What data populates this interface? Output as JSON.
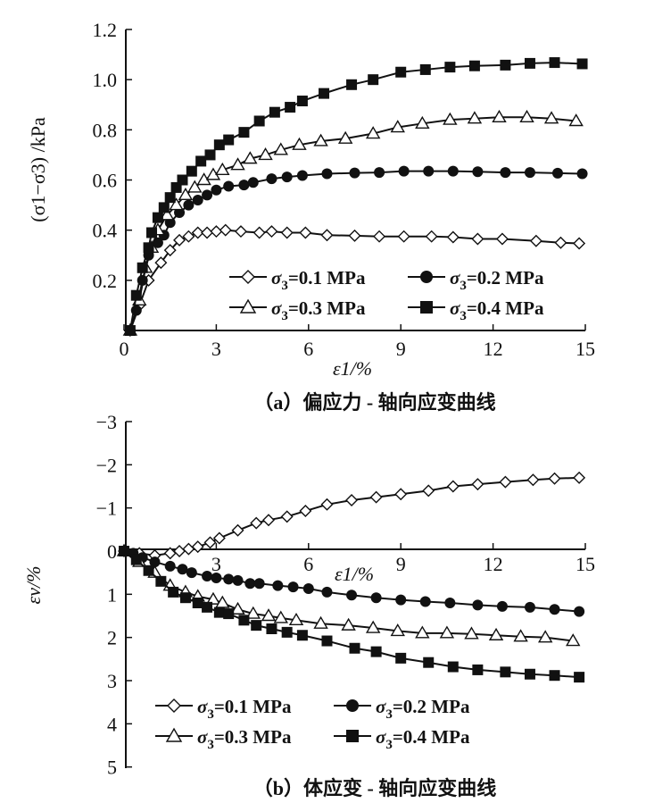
{
  "chart_data": [
    {
      "type": "line",
      "title": "（a）偏应力 - 轴向应变曲线",
      "xlabel": "ε1/%",
      "ylabel": "(σ1−σ3) /kPa",
      "xlim": [
        0,
        15
      ],
      "ylim": [
        0,
        1.2
      ],
      "xticks": [
        "0",
        "3",
        "6",
        "9",
        "12",
        "15"
      ],
      "yticks": [
        "0.2",
        "0.4",
        "0.6",
        "0.8",
        "1.0",
        "1.2"
      ],
      "legend_position": "bottom-right",
      "series": [
        {
          "name": "σ3=0.1 MPa",
          "marker": "diamond-open",
          "points": [
            [
              0.2,
              0
            ],
            [
              0.5,
              0.1
            ],
            [
              0.8,
              0.2
            ],
            [
              1.2,
              0.27
            ],
            [
              1.5,
              0.32
            ],
            [
              1.8,
              0.36
            ],
            [
              2.1,
              0.375
            ],
            [
              2.4,
              0.39
            ],
            [
              2.7,
              0.39
            ],
            [
              3.0,
              0.395
            ],
            [
              3.3,
              0.4
            ],
            [
              3.8,
              0.395
            ],
            [
              4.4,
              0.39
            ],
            [
              4.8,
              0.395
            ],
            [
              5.3,
              0.39
            ],
            [
              5.9,
              0.39
            ],
            [
              6.6,
              0.38
            ],
            [
              7.5,
              0.378
            ],
            [
              8.3,
              0.375
            ],
            [
              9.1,
              0.375
            ],
            [
              10.0,
              0.375
            ],
            [
              10.7,
              0.372
            ],
            [
              11.5,
              0.365
            ],
            [
              12.3,
              0.365
            ],
            [
              13.4,
              0.357
            ],
            [
              14.2,
              0.35
            ],
            [
              14.8,
              0.347
            ]
          ]
        },
        {
          "name": "σ3=0.2 MPa",
          "marker": "circle-filled",
          "points": [
            [
              0.2,
              0
            ],
            [
              0.4,
              0.08
            ],
            [
              0.6,
              0.2
            ],
            [
              0.8,
              0.3
            ],
            [
              1.1,
              0.35
            ],
            [
              1.3,
              0.38
            ],
            [
              1.5,
              0.43
            ],
            [
              1.8,
              0.47
            ],
            [
              2.1,
              0.5
            ],
            [
              2.4,
              0.52
            ],
            [
              2.7,
              0.54
            ],
            [
              3.0,
              0.56
            ],
            [
              3.4,
              0.575
            ],
            [
              3.9,
              0.58
            ],
            [
              4.2,
              0.59
            ],
            [
              4.8,
              0.605
            ],
            [
              5.3,
              0.612
            ],
            [
              5.8,
              0.618
            ],
            [
              6.6,
              0.625
            ],
            [
              7.5,
              0.628
            ],
            [
              8.3,
              0.63
            ],
            [
              9.1,
              0.635
            ],
            [
              9.9,
              0.635
            ],
            [
              10.7,
              0.635
            ],
            [
              11.5,
              0.633
            ],
            [
              12.4,
              0.63
            ],
            [
              13.2,
              0.63
            ],
            [
              14.1,
              0.627
            ],
            [
              14.9,
              0.625
            ]
          ]
        },
        {
          "name": "σ3=0.3 MPa",
          "marker": "triangle-open",
          "points": [
            [
              0.2,
              0
            ],
            [
              0.5,
              0.12
            ],
            [
              0.7,
              0.25
            ],
            [
              0.9,
              0.33
            ],
            [
              1.1,
              0.4
            ],
            [
              1.4,
              0.46
            ],
            [
              1.7,
              0.5
            ],
            [
              2.0,
              0.54
            ],
            [
              2.3,
              0.57
            ],
            [
              2.6,
              0.6
            ],
            [
              2.9,
              0.62
            ],
            [
              3.2,
              0.64
            ],
            [
              3.7,
              0.66
            ],
            [
              4.1,
              0.685
            ],
            [
              4.6,
              0.7
            ],
            [
              5.1,
              0.72
            ],
            [
              5.7,
              0.74
            ],
            [
              6.4,
              0.755
            ],
            [
              7.2,
              0.765
            ],
            [
              8.1,
              0.785
            ],
            [
              8.9,
              0.81
            ],
            [
              9.7,
              0.825
            ],
            [
              10.6,
              0.84
            ],
            [
              11.4,
              0.845
            ],
            [
              12.2,
              0.85
            ],
            [
              13.1,
              0.85
            ],
            [
              13.9,
              0.845
            ],
            [
              14.7,
              0.835
            ]
          ]
        },
        {
          "name": "σ3=0.4 MPa",
          "marker": "square-filled",
          "points": [
            [
              0.2,
              0
            ],
            [
              0.4,
              0.14
            ],
            [
              0.6,
              0.25
            ],
            [
              0.8,
              0.33
            ],
            [
              0.9,
              0.39
            ],
            [
              1.1,
              0.45
            ],
            [
              1.3,
              0.49
            ],
            [
              1.5,
              0.53
            ],
            [
              1.7,
              0.57
            ],
            [
              1.9,
              0.6
            ],
            [
              2.2,
              0.635
            ],
            [
              2.5,
              0.675
            ],
            [
              2.8,
              0.7
            ],
            [
              3.1,
              0.74
            ],
            [
              3.4,
              0.76
            ],
            [
              3.9,
              0.79
            ],
            [
              4.4,
              0.835
            ],
            [
              4.9,
              0.87
            ],
            [
              5.4,
              0.89
            ],
            [
              5.8,
              0.915
            ],
            [
              6.5,
              0.945
            ],
            [
              7.4,
              0.98
            ],
            [
              8.1,
              1.0
            ],
            [
              9.0,
              1.03
            ],
            [
              9.8,
              1.04
            ],
            [
              10.6,
              1.05
            ],
            [
              11.4,
              1.055
            ],
            [
              12.4,
              1.058
            ],
            [
              13.2,
              1.065
            ],
            [
              14.0,
              1.068
            ],
            [
              14.9,
              1.063
            ]
          ]
        }
      ]
    },
    {
      "type": "line",
      "title": "（b）体应变 - 轴向应变曲线",
      "xlabel": "ε1/%",
      "ylabel": "εv/%",
      "xlim": [
        0,
        15
      ],
      "ylim": [
        5,
        -3
      ],
      "xticks": [
        "3",
        "6",
        "9",
        "12",
        "15"
      ],
      "yticks": [
        "-3",
        "-2",
        "-1",
        "0",
        "1",
        "2",
        "3",
        "4",
        "5"
      ],
      "legend_position": "bottom-left",
      "series": [
        {
          "name": "σ3=0.1 MPa",
          "marker": "diamond-open",
          "points": [
            [
              0,
              0
            ],
            [
              0.5,
              0.05
            ],
            [
              1,
              0.1
            ],
            [
              1.5,
              0.05
            ],
            [
              1.8,
              0
            ],
            [
              2.1,
              -0.05
            ],
            [
              2.4,
              -0.1
            ],
            [
              2.8,
              -0.2
            ],
            [
              3.1,
              -0.3
            ],
            [
              3.7,
              -0.48
            ],
            [
              4.3,
              -0.65
            ],
            [
              4.7,
              -0.72
            ],
            [
              5.3,
              -0.8
            ],
            [
              5.9,
              -0.93
            ],
            [
              6.6,
              -1.08
            ],
            [
              7.4,
              -1.18
            ],
            [
              8.2,
              -1.25
            ],
            [
              9.0,
              -1.32
            ],
            [
              9.9,
              -1.4
            ],
            [
              10.7,
              -1.5
            ],
            [
              11.5,
              -1.55
            ],
            [
              12.4,
              -1.6
            ],
            [
              13.3,
              -1.65
            ],
            [
              14.0,
              -1.68
            ],
            [
              14.8,
              -1.7
            ]
          ]
        },
        {
          "name": "σ3=0.2 MPa",
          "marker": "circle-filled",
          "points": [
            [
              0,
              0
            ],
            [
              0.3,
              0.05
            ],
            [
              0.6,
              0.15
            ],
            [
              1,
              0.25
            ],
            [
              1.5,
              0.35
            ],
            [
              1.9,
              0.42
            ],
            [
              2.2,
              0.5
            ],
            [
              2.7,
              0.58
            ],
            [
              3.0,
              0.62
            ],
            [
              3.4,
              0.65
            ],
            [
              3.7,
              0.68
            ],
            [
              4.1,
              0.75
            ],
            [
              4.4,
              0.75
            ],
            [
              5.0,
              0.8
            ],
            [
              5.5,
              0.83
            ],
            [
              6.0,
              0.87
            ],
            [
              6.6,
              0.95
            ],
            [
              7.4,
              1.02
            ],
            [
              8.2,
              1.08
            ],
            [
              9.0,
              1.13
            ],
            [
              9.8,
              1.17
            ],
            [
              10.6,
              1.2
            ],
            [
              11.5,
              1.25
            ],
            [
              12.3,
              1.28
            ],
            [
              13.2,
              1.3
            ],
            [
              14.0,
              1.35
            ],
            [
              14.8,
              1.4
            ]
          ]
        },
        {
          "name": "σ3=0.3 MPa",
          "marker": "triangle-open",
          "points": [
            [
              0,
              0
            ],
            [
              0.5,
              0.25
            ],
            [
              1,
              0.5
            ],
            [
              1.5,
              0.8
            ],
            [
              2,
              0.95
            ],
            [
              2.4,
              1.05
            ],
            [
              2.9,
              1.12
            ],
            [
              3.2,
              1.2
            ],
            [
              3.7,
              1.35
            ],
            [
              4.2,
              1.45
            ],
            [
              4.7,
              1.5
            ],
            [
              5.1,
              1.55
            ],
            [
              5.6,
              1.6
            ],
            [
              6.4,
              1.68
            ],
            [
              7.3,
              1.72
            ],
            [
              8.1,
              1.78
            ],
            [
              8.9,
              1.85
            ],
            [
              9.7,
              1.9
            ],
            [
              10.5,
              1.9
            ],
            [
              11.3,
              1.92
            ],
            [
              12.1,
              1.95
            ],
            [
              12.9,
              1.98
            ],
            [
              13.7,
              2.0
            ],
            [
              14.6,
              2.08
            ]
          ]
        },
        {
          "name": "σ3=0.4 MPa",
          "marker": "square-filled",
          "points": [
            [
              0,
              0
            ],
            [
              0.4,
              0.2
            ],
            [
              0.8,
              0.45
            ],
            [
              1.2,
              0.7
            ],
            [
              1.6,
              0.95
            ],
            [
              2.0,
              1.08
            ],
            [
              2.4,
              1.2
            ],
            [
              2.7,
              1.3
            ],
            [
              3.1,
              1.42
            ],
            [
              3.4,
              1.45
            ],
            [
              3.9,
              1.6
            ],
            [
              4.3,
              1.72
            ],
            [
              4.8,
              1.8
            ],
            [
              5.3,
              1.88
            ],
            [
              5.8,
              1.95
            ],
            [
              6.6,
              2.08
            ],
            [
              7.5,
              2.25
            ],
            [
              8.2,
              2.33
            ],
            [
              9.0,
              2.48
            ],
            [
              9.9,
              2.58
            ],
            [
              10.7,
              2.68
            ],
            [
              11.5,
              2.75
            ],
            [
              12.4,
              2.8
            ],
            [
              13.2,
              2.85
            ],
            [
              14.0,
              2.88
            ],
            [
              14.8,
              2.92
            ]
          ]
        }
      ]
    }
  ]
}
